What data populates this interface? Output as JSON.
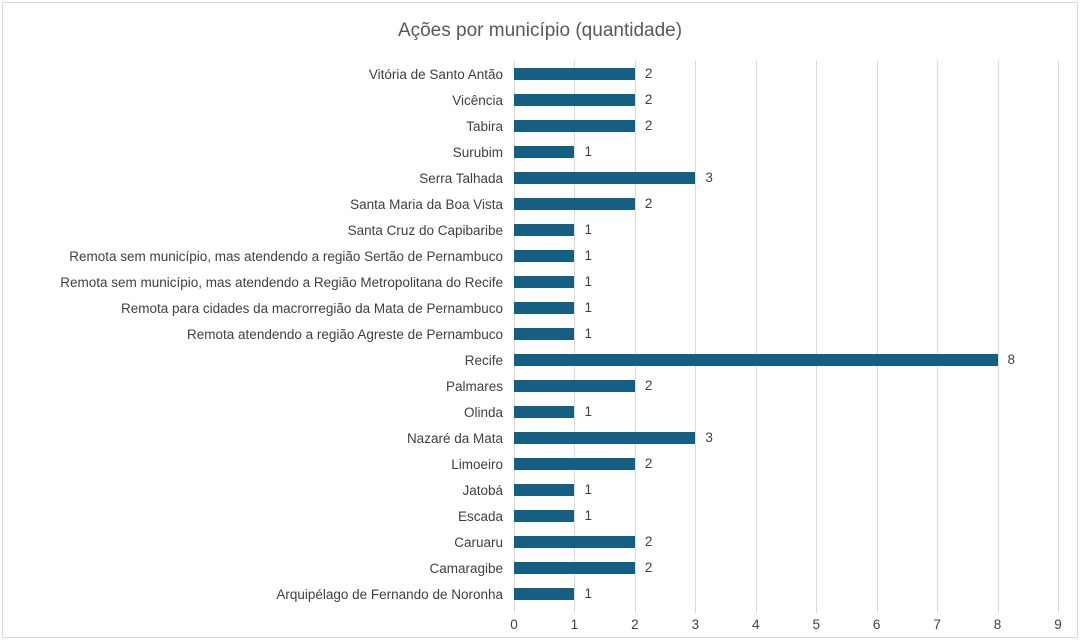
{
  "chart": {
    "colors": {
      "bar": "#156082",
      "gridline": "#D9D9D9",
      "frame_border": "#D9D9D9",
      "title_text": "#595959",
      "label_text": "#404040"
    }
  },
  "chart_data": {
    "type": "bar",
    "orientation": "horizontal",
    "title": "Ações por município (quantidade)",
    "categories": [
      "Vitória de Santo Antão",
      "Vicência",
      "Tabira",
      "Surubim",
      "Serra Talhada",
      "Santa Maria da Boa Vista",
      "Santa Cruz do Capibaribe",
      "Remota sem município, mas atendendo a região Sertão de Pernambuco",
      "Remota sem município, mas atendendo a Região Metropolitana do Recife",
      "Remota para cidades da macrorregião da Mata de Pernambuco",
      "Remota atendendo a região Agreste de Pernambuco",
      "Recife",
      "Palmares",
      "Olinda",
      "Nazaré da Mata",
      "Limoeiro",
      "Jatobá",
      "Escada",
      "Caruaru",
      "Camaragibe",
      "Arquipélago de Fernando de Noronha"
    ],
    "values": [
      2,
      2,
      2,
      1,
      3,
      2,
      1,
      1,
      1,
      1,
      1,
      8,
      2,
      1,
      3,
      2,
      1,
      1,
      2,
      2,
      1
    ],
    "data_labels": true,
    "xlabel": "",
    "ylabel": "",
    "xlim": [
      0,
      9
    ],
    "x_ticks": [
      0,
      1,
      2,
      3,
      4,
      5,
      6,
      7,
      8,
      9
    ],
    "grid": "vertical",
    "legend": "none"
  }
}
